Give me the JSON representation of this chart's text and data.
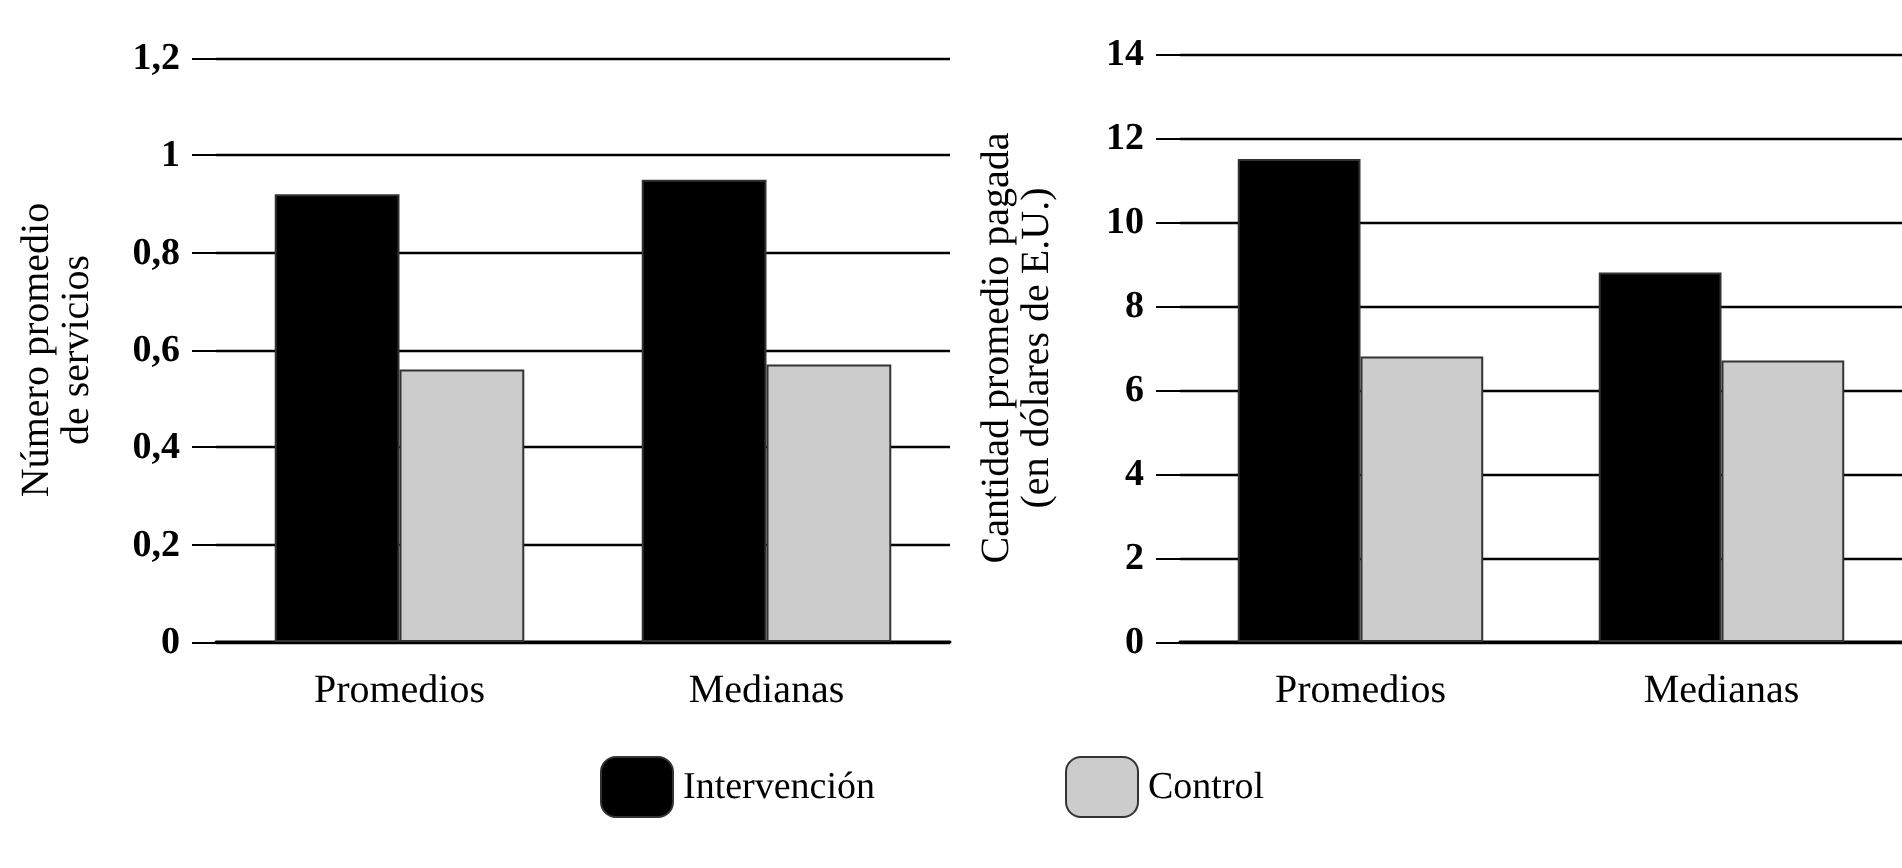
{
  "chart_data": [
    {
      "type": "bar",
      "ylabel": "Número promedio de servicios",
      "categories": [
        "Promedios",
        "Medianas"
      ],
      "series": [
        {
          "name": "Intervención",
          "color": "#000000",
          "values": [
            0.92,
            0.95
          ]
        },
        {
          "name": "Control",
          "color": "#cccccc",
          "values": [
            0.56,
            0.57
          ]
        }
      ],
      "ylim": [
        0,
        1.2
      ],
      "yticks": [
        0,
        {
          "value": 0.2,
          "label": "0,2"
        },
        {
          "value": 0.4,
          "label": "0,4"
        },
        {
          "value": 0.6,
          "label": "0,6"
        },
        {
          "value": 0.8,
          "label": "0,8"
        },
        1,
        {
          "value": 1.2,
          "label": "1,2"
        }
      ],
      "grid": "y",
      "legend": "bottom"
    },
    {
      "type": "bar",
      "ylabel": "Cantidad promedio pagada (en dólares de E.U.)",
      "categories": [
        "Promedios",
        "Medianas"
      ],
      "series": [
        {
          "color": "#000000",
          "values": [
            11.5,
            8.8
          ]
        },
        {
          "color": "#cccccc",
          "values": [
            6.8,
            6.7
          ]
        }
      ],
      "ylim": [
        0,
        14
      ],
      "yticks": [
        0,
        2,
        4,
        6,
        8,
        10,
        12,
        14
      ],
      "grid": "y"
    }
  ]
}
